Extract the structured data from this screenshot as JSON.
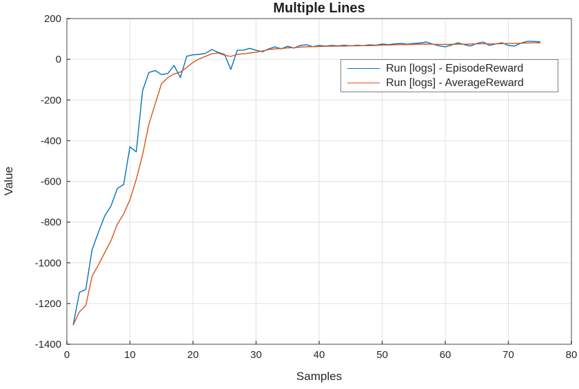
{
  "chart_data": {
    "type": "line",
    "title": "Multiple Lines",
    "xlabel": "Samples",
    "ylabel": "Value",
    "xlim": [
      0,
      80
    ],
    "ylim": [
      -1400,
      200
    ],
    "xticks": [
      0,
      10,
      20,
      30,
      40,
      50,
      60,
      70,
      80
    ],
    "yticks": [
      200,
      0,
      -200,
      -400,
      -600,
      -800,
      -1000,
      -1200,
      -1400
    ],
    "grid": true,
    "grid_color": "#e0e0e0",
    "axis_color": "#8c8c8c",
    "tick_color": "#4d4d4d",
    "text_color": "#262626",
    "legend": {
      "position": "upper-right",
      "border_color": "#7f7f7f",
      "background": "#ffffff"
    },
    "x": [
      1,
      2,
      3,
      4,
      5,
      6,
      7,
      8,
      9,
      10,
      11,
      12,
      13,
      14,
      15,
      16,
      17,
      18,
      19,
      20,
      21,
      22,
      23,
      24,
      25,
      26,
      27,
      28,
      29,
      30,
      31,
      32,
      33,
      34,
      35,
      36,
      37,
      38,
      39,
      40,
      41,
      42,
      43,
      44,
      45,
      46,
      47,
      48,
      49,
      50,
      51,
      52,
      53,
      54,
      55,
      56,
      57,
      58,
      59,
      60,
      61,
      62,
      63,
      64,
      65,
      66,
      67,
      68,
      69,
      70,
      71,
      72,
      73,
      74,
      75
    ],
    "series": [
      {
        "name": "Run [logs] - EpisodeReward",
        "color": "#0072BD",
        "values": [
          -1305,
          -1145,
          -1130,
          -935,
          -850,
          -770,
          -720,
          -635,
          -615,
          -430,
          -455,
          -155,
          -65,
          -55,
          -75,
          -70,
          -30,
          -90,
          15,
          22,
          24,
          30,
          48,
          34,
          24,
          -50,
          44,
          45,
          54,
          44,
          37,
          51,
          61,
          51,
          64,
          55,
          68,
          71,
          62,
          68,
          65,
          68,
          66,
          69,
          66,
          69,
          67,
          71,
          69,
          75,
          72,
          76,
          78,
          74,
          78,
          80,
          85,
          75,
          66,
          61,
          70,
          81,
          72,
          65,
          78,
          85,
          68,
          76,
          81,
          68,
          65,
          80,
          88,
          88,
          85
        ]
      },
      {
        "name": "Run [logs] - AverageReward",
        "color": "#D95319",
        "values": [
          -1305,
          -1240,
          -1210,
          -1065,
          -1010,
          -950,
          -890,
          -810,
          -760,
          -690,
          -590,
          -470,
          -320,
          -220,
          -120,
          -90,
          -72,
          -63,
          -40,
          -15,
          2,
          15,
          27,
          31,
          20,
          14,
          24,
          27,
          31,
          35,
          41,
          48,
          51,
          53,
          56,
          57,
          60,
          61,
          62,
          63,
          64,
          64,
          65,
          65,
          66,
          66,
          67,
          67,
          68,
          70,
          70,
          71,
          72,
          72,
          73,
          74,
          75,
          74,
          73,
          73,
          73,
          74,
          74,
          75,
          76,
          77,
          76,
          76,
          77,
          78,
          78,
          79,
          80,
          81,
          81
        ]
      }
    ]
  }
}
